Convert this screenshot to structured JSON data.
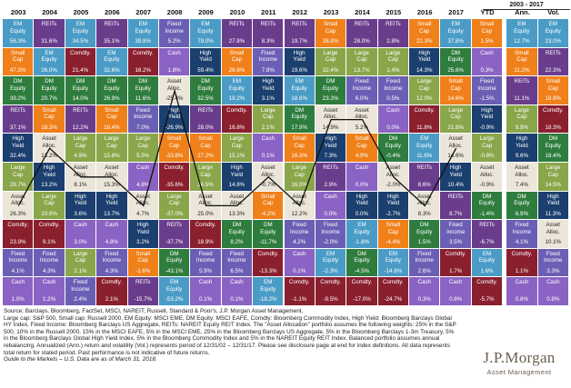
{
  "chart_data": {
    "type": "table",
    "group_header": "2003 - 2017",
    "columns": [
      "2003",
      "2004",
      "2005",
      "2006",
      "2007",
      "2008",
      "2009",
      "2010",
      "2011",
      "2012",
      "2013",
      "2014",
      "2015",
      "2016",
      "2017",
      "YTD",
      "Ann.",
      "Vol."
    ],
    "colors": {
      "EM Equity": "#4a9cc6",
      "REITs": "#6a3d8c",
      "Small Cap": "#f0801a",
      "DM Equity": "#2f7d3e",
      "High Yield": "#1b3f6e",
      "Asset Alloc.": "#ece6da",
      "Large Cap": "#8aa64a",
      "Comdty.": "#8a1f2e",
      "Fixed Income": "#6b5fb5",
      "Cash": "#8b63c4"
    },
    "cells": [
      [
        [
          "EM Equity",
          "56.3%"
        ],
        [
          "REITs",
          "31.6%"
        ],
        [
          "EM Equity",
          "34.5%"
        ],
        [
          "REITs",
          "35.1%"
        ],
        [
          "EM Equity",
          "39.8%"
        ],
        [
          "Fixed Income",
          "5.2%"
        ],
        [
          "EM Equity",
          "79.0%"
        ],
        [
          "REITs",
          "27.9%"
        ],
        [
          "REITs",
          "8.3%"
        ],
        [
          "REITs",
          "19.7%"
        ],
        [
          "Small Cap",
          "38.8%"
        ],
        [
          "REITs",
          "28.0%"
        ],
        [
          "REITs",
          "2.8%"
        ],
        [
          "Small Cap",
          "21.3%"
        ],
        [
          "EM Equity",
          "37.8%"
        ],
        [
          "Small Cap",
          "1.5%"
        ],
        [
          "EM Equity",
          "12.7%"
        ],
        [
          "EM Equity",
          "23.0%"
        ]
      ],
      [
        [
          "Small Cap",
          "47.3%"
        ],
        [
          "EM Equity",
          "26.0%"
        ],
        [
          "Comdty.",
          "21.4%"
        ],
        [
          "EM Equity",
          "32.6%"
        ],
        [
          "Comdty.",
          "16.2%"
        ],
        [
          "Cash",
          "1.8%"
        ],
        [
          "High Yield",
          "59.4%"
        ],
        [
          "Small Cap",
          "26.9%"
        ],
        [
          "Fixed Income",
          "7.8%"
        ],
        [
          "High Yield",
          "19.6%"
        ],
        [
          "Large Cap",
          "32.4%"
        ],
        [
          "Large Cap",
          "13.7%"
        ],
        [
          "Large Cap",
          "1.4%"
        ],
        [
          "High Yield",
          "14.3%"
        ],
        [
          "DM Equity",
          "25.6%"
        ],
        [
          "Cash",
          "0.3%"
        ],
        [
          "Small Cap",
          "11.2%"
        ],
        [
          "REITs",
          "22.3%"
        ]
      ],
      [
        [
          "DM Equity",
          "39.2%"
        ],
        [
          "DM Equity",
          "20.7%"
        ],
        [
          "DM Equity",
          "14.0%"
        ],
        [
          "DM Equity",
          "26.9%"
        ],
        [
          "DM Equity",
          "11.6%"
        ],
        [
          "Asset Alloc.",
          "-25.4%"
        ],
        [
          "DM Equity",
          "32.5%"
        ],
        [
          "EM Equity",
          "19.2%"
        ],
        [
          "High Yield",
          "3.1%"
        ],
        [
          "EM Equity",
          "18.6%"
        ],
        [
          "DM Equity",
          "23.3%"
        ],
        [
          "Fixed Income",
          "6.0%"
        ],
        [
          "Fixed Income",
          "0.5%"
        ],
        [
          "Large Cap",
          "12.0%"
        ],
        [
          "Small Cap",
          "14.6%"
        ],
        [
          "Fixed Income",
          "-1.5%"
        ],
        [
          "REITs",
          "11.1%"
        ],
        [
          "Small Cap",
          "18.9%"
        ]
      ],
      [
        [
          "REITs",
          "37.1%"
        ],
        [
          "Small Cap",
          "18.3%"
        ],
        [
          "REITs",
          "12.2%"
        ],
        [
          "Small Cap",
          "18.4%"
        ],
        [
          "Fixed Income",
          "7.0%"
        ],
        [
          "High Yield",
          "-26.9%"
        ],
        [
          "REITs",
          "28.0%"
        ],
        [
          "Comdty.",
          "16.8%"
        ],
        [
          "Large Cap",
          "2.1%"
        ],
        [
          "DM Equity",
          "17.9%"
        ],
        [
          "Asset Alloc.",
          "14.9%"
        ],
        [
          "Asset Alloc.",
          "5.2%"
        ],
        [
          "Cash",
          "0.0%"
        ],
        [
          "Comdty.",
          "11.8%"
        ],
        [
          "Large Cap",
          "21.8%"
        ],
        [
          "High Yield",
          "-0.9%"
        ],
        [
          "Large Cap",
          "9.9%"
        ],
        [
          "Comdty.",
          "18.3%"
        ]
      ],
      [
        [
          "High Yield",
          "32.4%"
        ],
        [
          "Asset Alloc.",
          "13.2%"
        ],
        [
          "Large Cap",
          "4.9%"
        ],
        [
          "Large Cap",
          "15.8%"
        ],
        [
          "Large Cap",
          "5.5%"
        ],
        [
          "Small Cap",
          "-33.8%"
        ],
        [
          "Small Cap",
          "27.2%"
        ],
        [
          "Large Cap",
          "15.1%"
        ],
        [
          "Cash",
          "0.1%"
        ],
        [
          "Small Cap",
          "16.3%"
        ],
        [
          "High Yield",
          "7.3%"
        ],
        [
          "Small Cap",
          "4.9%"
        ],
        [
          "DM Equity",
          "-0.4%"
        ],
        [
          "EM Equity",
          "11.6%"
        ],
        [
          "Asset Alloc.",
          "14.6%"
        ],
        [
          "Large Cap",
          "-0.8%"
        ],
        [
          "High Yield",
          "9.6%"
        ],
        [
          "DM Equity",
          "18.4%"
        ]
      ],
      [
        [
          "Large Cap",
          "28.7%"
        ],
        [
          "High Yield",
          "13.2%"
        ],
        [
          "Asset Alloc.",
          "8.1%"
        ],
        [
          "Asset Alloc.",
          "15.3%"
        ],
        [
          "Cash",
          "4.8%"
        ],
        [
          "Comdty.",
          "-35.6%"
        ],
        [
          "Large Cap",
          "26.5%"
        ],
        [
          "High Yield",
          "14.8%"
        ],
        [
          "Asset Alloc.",
          "-0.7%"
        ],
        [
          "Large Cap",
          "16.0%"
        ],
        [
          "REITs",
          "2.9%"
        ],
        [
          "Cash",
          "0.0%"
        ],
        [
          "Asset Alloc.",
          "-2.0%"
        ],
        [
          "REITs",
          "8.6%"
        ],
        [
          "High Yield",
          "10.4%"
        ],
        [
          "Asset Alloc.",
          "-0.9%"
        ],
        [
          "Asset Alloc.",
          "7.4%"
        ],
        [
          "Large Cap",
          "14.5%"
        ]
      ],
      [
        [
          "Asset Alloc.",
          "26.3%"
        ],
        [
          "Large Cap",
          "10.9%"
        ],
        [
          "High Yield",
          "3.6%"
        ],
        [
          "High Yield",
          "13.7%"
        ],
        [
          "Asset Alloc.",
          "4.7%"
        ],
        [
          "Large Cap",
          "-37.0%"
        ],
        [
          "Asset Alloc.",
          "25.0%"
        ],
        [
          "Asset Alloc.",
          "13.3%"
        ],
        [
          "Small Cap",
          "-4.2%"
        ],
        [
          "Asset Alloc.",
          "12.2%"
        ],
        [
          "Cash",
          "0.0%"
        ],
        [
          "High Yield",
          "0.0%"
        ],
        [
          "High Yield",
          "-2.7%"
        ],
        [
          "Asset Alloc.",
          "8.3%"
        ],
        [
          "REITs",
          "8.7%"
        ],
        [
          "DM Equity",
          "-1.4%"
        ],
        [
          "DM Equity",
          "6.9%"
        ],
        [
          "High Yield",
          "11.3%"
        ]
      ],
      [
        [
          "Comdty.",
          "23.9%"
        ],
        [
          "Comdty.",
          "9.1%"
        ],
        [
          "Cash",
          "3.0%"
        ],
        [
          "Cash",
          "4.8%"
        ],
        [
          "High Yield",
          "3.2%"
        ],
        [
          "REITs",
          "-37.7%"
        ],
        [
          "Comdty.",
          "18.9%"
        ],
        [
          "DM Equity",
          "8.2%"
        ],
        [
          "DM Equity",
          "-11.7%"
        ],
        [
          "Fixed Income",
          "4.2%"
        ],
        [
          "Fixed Income",
          "-2.0%"
        ],
        [
          "EM Equity",
          "-1.8%"
        ],
        [
          "Small Cap",
          "-4.4%"
        ],
        [
          "DM Equity",
          "1.5%"
        ],
        [
          "Fixed Income",
          "3.5%"
        ],
        [
          "REITs",
          "-6.7%"
        ],
        [
          "Fixed Income",
          "4.1%"
        ],
        [
          "Asset Alloc.",
          "10.1%"
        ]
      ],
      [
        [
          "Fixed Income",
          "4.1%"
        ],
        [
          "Fixed Income",
          "4.3%"
        ],
        [
          "Large Cap",
          "2.1%"
        ],
        [
          "Fixed Income",
          "4.3%"
        ],
        [
          "Small Cap",
          "-1.6%"
        ],
        [
          "DM Equity",
          "-43.1%"
        ],
        [
          "Fixed Income",
          "5.9%"
        ],
        [
          "Fixed Income",
          "6.5%"
        ],
        [
          "Comdty.",
          "-13.3%"
        ],
        [
          "Cash",
          "0.1%"
        ],
        [
          "EM Equity",
          "-2.3%"
        ],
        [
          "DM Equity",
          "-4.5%"
        ],
        [
          "EM Equity",
          "-14.6%"
        ],
        [
          "Fixed Income",
          "2.6%"
        ],
        [
          "Comdty.",
          "1.7%"
        ],
        [
          "EM Equity",
          "1.6%"
        ],
        [
          "Comdty.",
          "1.1%"
        ],
        [
          "Fixed Income",
          "3.3%"
        ]
      ],
      [
        [
          "Cash",
          "1.0%"
        ],
        [
          "Cash",
          "1.2%"
        ],
        [
          "Fixed Income",
          "2.4%"
        ],
        [
          "Comdty.",
          "2.1%"
        ],
        [
          "REITs",
          "-15.7%"
        ],
        [
          "EM Equity",
          "-53.2%"
        ],
        [
          "Cash",
          "0.1%"
        ],
        [
          "Cash",
          "0.1%"
        ],
        [
          "EM Equity",
          "-18.2%"
        ],
        [
          "Comdty.",
          "-1.1%"
        ],
        [
          "Comdty.",
          "-9.5%"
        ],
        [
          "Comdty.",
          "-17.0%"
        ],
        [
          "Comdty.",
          "-24.7%"
        ],
        [
          "Cash",
          "0.3%"
        ],
        [
          "Cash",
          "0.8%"
        ],
        [
          "Comdty.",
          "-5.7%"
        ],
        [
          "Cash",
          "0.8%"
        ],
        [
          "Cash",
          "0.8%"
        ]
      ]
    ]
  },
  "footnote": {
    "source": "Source: Barclays, Bloomberg, FactSet, MSCI, NAREIT, Russell, Standard & Poor's, J.P. Morgan Asset Management.",
    "line2": "Large cap: S&P 500, Small cap: Russell 2000, EM Equity: MSCI EME, DM Equity: MSCI EAFE, Comdty: Bloomberg Commodity Index, High Yield: Bloomberg Barclays Global HY Index, Fixed Income: Bloomberg Barclays US Aggregate, REITs: NAREIT Equity REIT Index. The \"Asset Allocation\" portfolio assumes the following weights: 25% in the S&P 500, 10% in the Russell 2000, 15% in the MSCI EAFE, 5% in the MSCI EME, 25% in the Bloomberg Barclays US Aggregate, 5% in the Bloomberg Barclays 1-3m Treasury, 5% in the Bloomberg Barclays Global High Yield Index, 5% in the Bloomberg Commodity Index and 5% in the NAREIT Equity REIT Index. Balanced portfolio assumes annual rebalancing. Annualized (Ann.) return and volatility (Vol.) represents period of 12/31/02 – 12/31/17. Please see disclosure page at end for index definitions. All data represents total return for stated period. Past performance is not indicative of future returns.",
    "guide": "Guide to the Markets – U.S. Data are as of March 31, 2018."
  },
  "logo": {
    "brand": "J.P.Morgan",
    "sub": "Asset Management"
  }
}
